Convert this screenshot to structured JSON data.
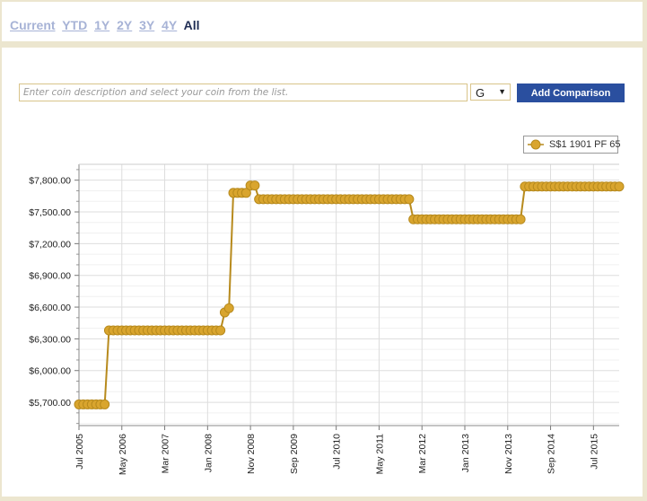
{
  "range_tabs": [
    "Current",
    "YTD",
    "1Y",
    "2Y",
    "3Y",
    "4Y",
    "All"
  ],
  "active_tab": "All",
  "search": {
    "placeholder": "Enter coin description and select your coin from the list."
  },
  "grade_select": {
    "value": "G"
  },
  "add_button": "Add Comparison",
  "colors": {
    "series": "#d9a52e",
    "series_stroke": "#b78a1d",
    "button": "#2a4f9f",
    "grid": "#dddddd"
  },
  "chart_data": {
    "type": "line",
    "series": [
      {
        "name": "S$1 1901 PF 65",
        "values": [
          [
            "2005-07",
            5680
          ],
          [
            "2005-08",
            5680
          ],
          [
            "2005-09",
            5680
          ],
          [
            "2005-10",
            5680
          ],
          [
            "2005-11",
            5680
          ],
          [
            "2005-12",
            5680
          ],
          [
            "2006-01",
            5680
          ],
          [
            "2006-02",
            6380
          ],
          [
            "2006-03",
            6380
          ],
          [
            "2006-04",
            6380
          ],
          [
            "2006-05",
            6380
          ],
          [
            "2006-06",
            6380
          ],
          [
            "2006-07",
            6380
          ],
          [
            "2006-08",
            6380
          ],
          [
            "2006-09",
            6380
          ],
          [
            "2006-10",
            6380
          ],
          [
            "2006-11",
            6380
          ],
          [
            "2006-12",
            6380
          ],
          [
            "2007-01",
            6380
          ],
          [
            "2007-02",
            6380
          ],
          [
            "2007-03",
            6380
          ],
          [
            "2007-04",
            6380
          ],
          [
            "2007-05",
            6380
          ],
          [
            "2007-06",
            6380
          ],
          [
            "2007-07",
            6380
          ],
          [
            "2007-08",
            6380
          ],
          [
            "2007-09",
            6380
          ],
          [
            "2007-10",
            6380
          ],
          [
            "2007-11",
            6380
          ],
          [
            "2007-12",
            6380
          ],
          [
            "2008-01",
            6380
          ],
          [
            "2008-02",
            6380
          ],
          [
            "2008-03",
            6380
          ],
          [
            "2008-04",
            6380
          ],
          [
            "2008-05",
            6550
          ],
          [
            "2008-06",
            6590
          ],
          [
            "2008-07",
            7680
          ],
          [
            "2008-08",
            7680
          ],
          [
            "2008-09",
            7680
          ],
          [
            "2008-10",
            7680
          ],
          [
            "2008-11",
            7750
          ],
          [
            "2008-12",
            7750
          ],
          [
            "2009-01",
            7620
          ],
          [
            "2009-02",
            7620
          ],
          [
            "2009-03",
            7620
          ],
          [
            "2009-04",
            7620
          ],
          [
            "2009-05",
            7620
          ],
          [
            "2009-06",
            7620
          ],
          [
            "2009-07",
            7620
          ],
          [
            "2009-08",
            7620
          ],
          [
            "2009-09",
            7620
          ],
          [
            "2009-10",
            7620
          ],
          [
            "2009-11",
            7620
          ],
          [
            "2009-12",
            7620
          ],
          [
            "2010-01",
            7620
          ],
          [
            "2010-02",
            7620
          ],
          [
            "2010-03",
            7620
          ],
          [
            "2010-04",
            7620
          ],
          [
            "2010-05",
            7620
          ],
          [
            "2010-06",
            7620
          ],
          [
            "2010-07",
            7620
          ],
          [
            "2010-08",
            7620
          ],
          [
            "2010-09",
            7620
          ],
          [
            "2010-10",
            7620
          ],
          [
            "2010-11",
            7620
          ],
          [
            "2010-12",
            7620
          ],
          [
            "2011-01",
            7620
          ],
          [
            "2011-02",
            7620
          ],
          [
            "2011-03",
            7620
          ],
          [
            "2011-04",
            7620
          ],
          [
            "2011-05",
            7620
          ],
          [
            "2011-06",
            7620
          ],
          [
            "2011-07",
            7620
          ],
          [
            "2011-08",
            7620
          ],
          [
            "2011-09",
            7620
          ],
          [
            "2011-10",
            7620
          ],
          [
            "2011-11",
            7620
          ],
          [
            "2011-12",
            7620
          ],
          [
            "2012-01",
            7430
          ],
          [
            "2012-02",
            7430
          ],
          [
            "2012-03",
            7430
          ],
          [
            "2012-04",
            7430
          ],
          [
            "2012-05",
            7430
          ],
          [
            "2012-06",
            7430
          ],
          [
            "2012-07",
            7430
          ],
          [
            "2012-08",
            7430
          ],
          [
            "2012-09",
            7430
          ],
          [
            "2012-10",
            7430
          ],
          [
            "2012-11",
            7430
          ],
          [
            "2012-12",
            7430
          ],
          [
            "2013-01",
            7430
          ],
          [
            "2013-02",
            7430
          ],
          [
            "2013-03",
            7430
          ],
          [
            "2013-04",
            7430
          ],
          [
            "2013-05",
            7430
          ],
          [
            "2013-06",
            7430
          ],
          [
            "2013-07",
            7430
          ],
          [
            "2013-08",
            7430
          ],
          [
            "2013-09",
            7430
          ],
          [
            "2013-10",
            7430
          ],
          [
            "2013-11",
            7430
          ],
          [
            "2013-12",
            7430
          ],
          [
            "2014-01",
            7430
          ],
          [
            "2014-02",
            7430
          ],
          [
            "2014-03",
            7740
          ],
          [
            "2014-04",
            7740
          ],
          [
            "2014-05",
            7740
          ],
          [
            "2014-06",
            7740
          ],
          [
            "2014-07",
            7740
          ],
          [
            "2014-08",
            7740
          ],
          [
            "2014-09",
            7740
          ],
          [
            "2014-10",
            7740
          ],
          [
            "2014-11",
            7740
          ],
          [
            "2014-12",
            7740
          ],
          [
            "2015-01",
            7740
          ],
          [
            "2015-02",
            7740
          ],
          [
            "2015-03",
            7740
          ],
          [
            "2015-04",
            7740
          ],
          [
            "2015-05",
            7740
          ],
          [
            "2015-06",
            7740
          ],
          [
            "2015-07",
            7740
          ],
          [
            "2015-08",
            7740
          ],
          [
            "2015-09",
            7740
          ],
          [
            "2015-10",
            7740
          ],
          [
            "2015-11",
            7740
          ],
          [
            "2015-12",
            7740
          ],
          [
            "2016-01",
            7740
          ]
        ]
      }
    ],
    "x_range": [
      "2005-07",
      "2016-01"
    ],
    "x_ticks": [
      {
        "date": "2005-07",
        "label": "Jul 2005"
      },
      {
        "date": "2006-05",
        "label": "May 2006"
      },
      {
        "date": "2007-03",
        "label": "Mar 2007"
      },
      {
        "date": "2008-01",
        "label": "Jan 2008"
      },
      {
        "date": "2008-11",
        "label": "Nov 2008"
      },
      {
        "date": "2009-09",
        "label": "Sep 2009"
      },
      {
        "date": "2010-07",
        "label": "Jul 2010"
      },
      {
        "date": "2011-05",
        "label": "May 2011"
      },
      {
        "date": "2012-03",
        "label": "Mar 2012"
      },
      {
        "date": "2013-01",
        "label": "Jan 2013"
      },
      {
        "date": "2013-11",
        "label": "Nov 2013"
      },
      {
        "date": "2014-09",
        "label": "Sep 2014"
      },
      {
        "date": "2015-07",
        "label": "Jul 2015"
      }
    ],
    "y_ticks": [
      {
        "value": 5700,
        "label": "$5,700.00"
      },
      {
        "value": 6000,
        "label": "$6,000.00"
      },
      {
        "value": 6300,
        "label": "$6,300.00"
      },
      {
        "value": 6600,
        "label": "$6,600.00"
      },
      {
        "value": 6900,
        "label": "$6,900.00"
      },
      {
        "value": 7200,
        "label": "$7,200.00"
      },
      {
        "value": 7500,
        "label": "$7,500.00"
      },
      {
        "value": 7800,
        "label": "$7,800.00"
      }
    ],
    "ylim": [
      5480,
      7950
    ],
    "grid": true,
    "legend": "top-right"
  }
}
